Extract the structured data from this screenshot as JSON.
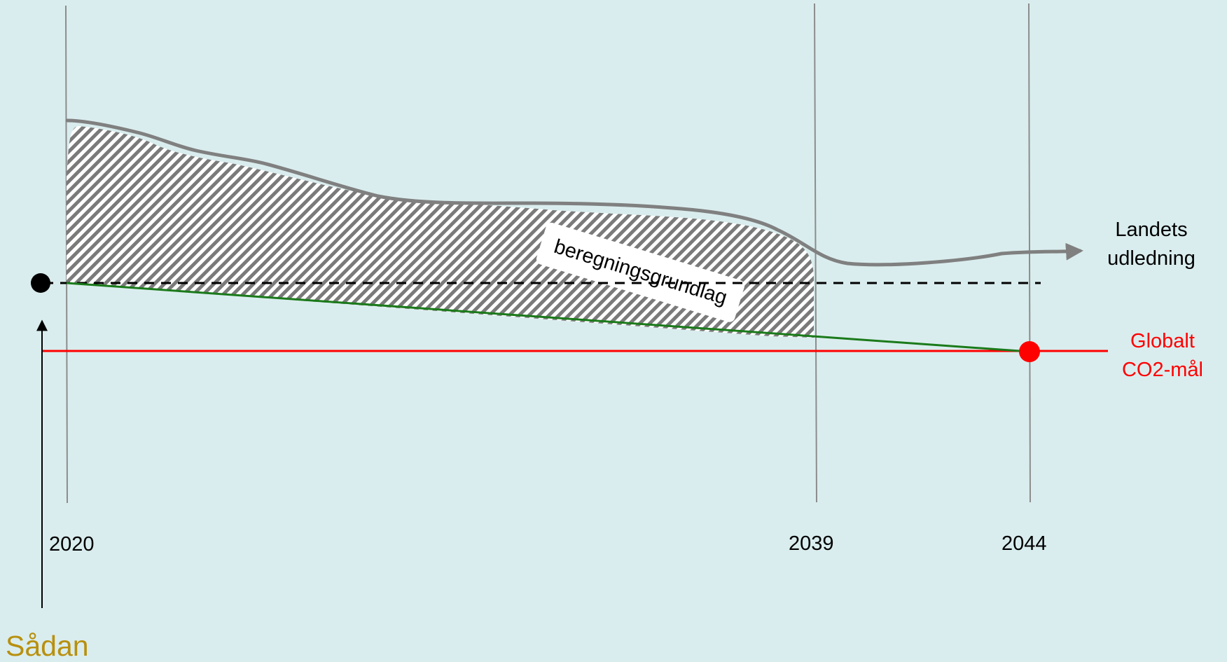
{
  "years": {
    "start": "2020",
    "mid": "2039",
    "end": "2044"
  },
  "labels": {
    "emissions_line1": "Landets",
    "emissions_line2": "udledning",
    "hatch_label": "beregningsgrundlag",
    "goal_line1": "Globalt",
    "goal_line2": "CO2-mål",
    "start_marker": "Sådan"
  },
  "colors": {
    "background": "#daedee",
    "emissions": "#808080",
    "hatch": "#7a7a7a",
    "reduction_path": "#1a7a1a",
    "goal": "#ff0000",
    "start_marker_text": "#b8900e",
    "year_gridline": "#8c8c8c"
  }
}
